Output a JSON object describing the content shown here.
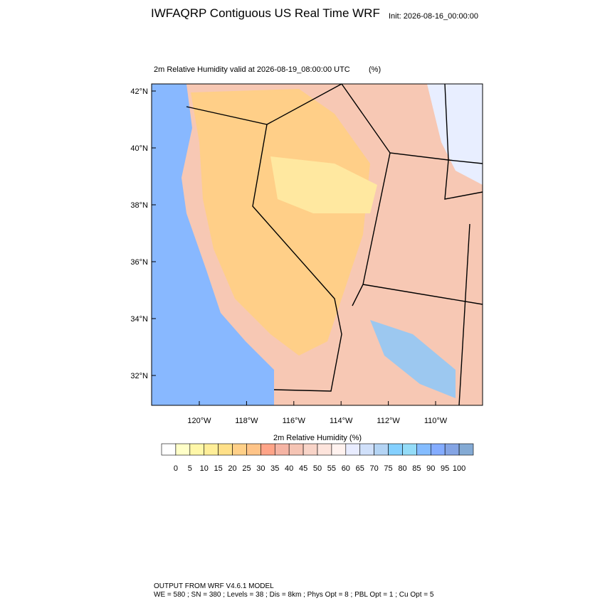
{
  "header": {
    "title": "IWFAQRP Contiguous US Real Time WRF",
    "init": "Init: 2026-08-16_00:00:00"
  },
  "map": {
    "subtitle": "2m Relative Humidity valid at 2026-08-19_08:00:00 UTC",
    "units": "(%)",
    "lat_labels": [
      "42°N",
      "40°N",
      "38°N",
      "36°N",
      "34°N",
      "32°N"
    ],
    "lon_labels": [
      "120°W",
      "118°W",
      "116°W",
      "114°W",
      "112°W",
      "110°W"
    ]
  },
  "colorbar": {
    "title": "2m Relative Humidity  (%)",
    "labels": [
      0,
      5,
      10,
      15,
      20,
      25,
      30,
      35,
      40,
      45,
      50,
      55,
      60,
      65,
      70,
      75,
      80,
      85,
      90,
      95,
      100
    ],
    "colors": [
      "#ffffff",
      "#ffffc8",
      "#fff7a8",
      "#ffee98",
      "#ffe088",
      "#ffd088",
      "#ffc488",
      "#ffa488",
      "#f5b4a4",
      "#f5c4b4",
      "#f8d4c8",
      "#fde4dc",
      "#fff2ef",
      "#e8ecff",
      "#d0e0fa",
      "#b4d4f4",
      "#84d0ff",
      "#94dcf8",
      "#84bcff",
      "#84acff",
      "#84a4e4",
      "#84aad4"
    ]
  },
  "footer": {
    "line1": "OUTPUT FROM WRF V4.6.1 MODEL",
    "line2": "WE = 580 ; SN = 380 ; Levels = 38 ; Dis = 8km ; Phys Opt = 8 ; PBL Opt = 1 ; Cu Opt = 5"
  }
}
